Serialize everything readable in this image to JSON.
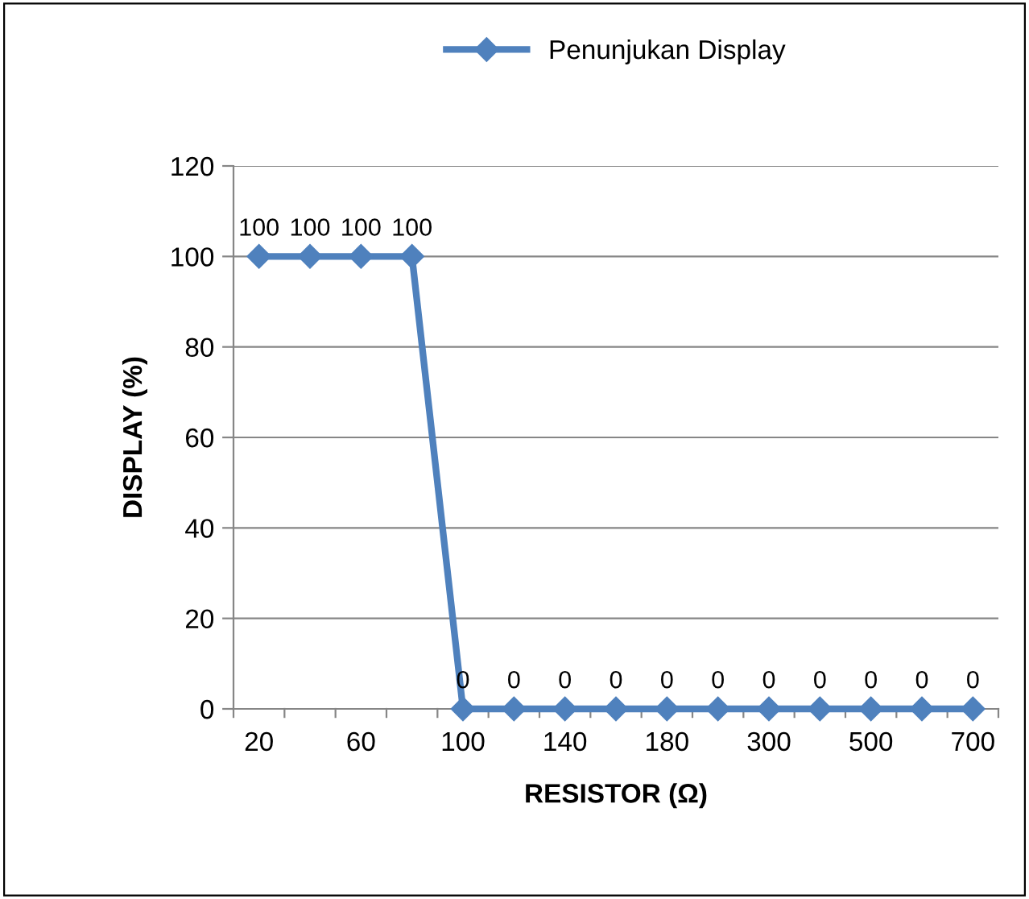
{
  "chart_data": {
    "type": "line",
    "xlabel": "RESISTOR (Ω)",
    "ylabel": "DISPLAY (%)",
    "categories": [
      "20",
      null,
      "60",
      null,
      "100",
      null,
      "140",
      null,
      "180",
      null,
      "300",
      null,
      "500",
      null,
      "700"
    ],
    "series": [
      {
        "name": "Penunjukan Display",
        "color": "#4f81bd",
        "values": [
          100,
          100,
          100,
          100,
          0,
          0,
          0,
          0,
          0,
          0,
          0,
          0,
          0,
          0,
          0
        ]
      }
    ],
    "ylim": [
      0,
      120
    ],
    "yticks": [
      0,
      20,
      40,
      60,
      80,
      100,
      120
    ],
    "grid": "y",
    "legend": "top",
    "marker": "diamond",
    "line_style": "solid",
    "data_labels": true
  }
}
